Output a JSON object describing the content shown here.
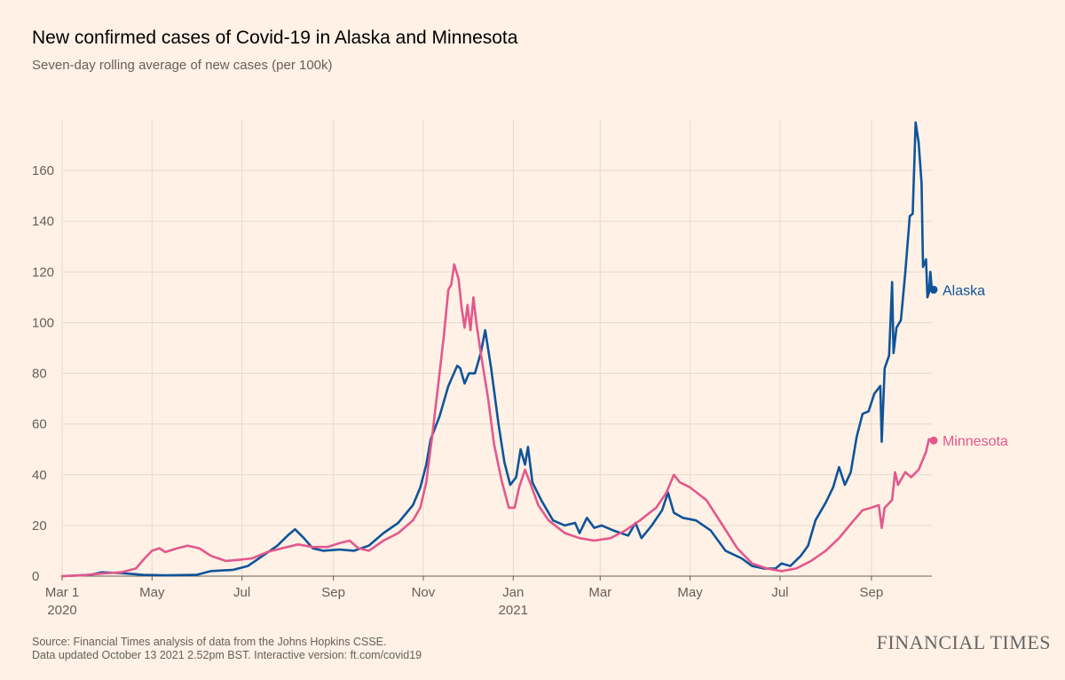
{
  "header": {
    "title": "New confirmed cases of Covid-19 in Alaska and Minnesota",
    "subtitle": "Seven-day rolling average of new cases (per 100k)"
  },
  "footer": {
    "source_line1": "Source: Financial Times analysis of data from the Johns Hopkins CSSE.",
    "source_line2": "Data updated October 13 2021 2.52pm BST. Interactive version: ft.com/covid19",
    "brand": "FINANCIAL TIMES"
  },
  "chart_data": {
    "type": "line",
    "title": "New confirmed cases of Covid-19 in Alaska and Minnesota",
    "subtitle": "Seven-day rolling average of new cases (per 100k)",
    "xlabel": "",
    "ylabel": "",
    "xlim": [
      "2020-03-01",
      "2021-10-12"
    ],
    "ylim": [
      0,
      180
    ],
    "grid": true,
    "x_ticks": [
      {
        "date": "2020-03-01",
        "label": "Mar 1",
        "sublabel": "2020"
      },
      {
        "date": "2020-05-01",
        "label": "May",
        "sublabel": ""
      },
      {
        "date": "2020-07-01",
        "label": "Jul",
        "sublabel": ""
      },
      {
        "date": "2020-09-01",
        "label": "Sep",
        "sublabel": ""
      },
      {
        "date": "2020-11-01",
        "label": "Nov",
        "sublabel": ""
      },
      {
        "date": "2021-01-01",
        "label": "Jan",
        "sublabel": "2021"
      },
      {
        "date": "2021-03-01",
        "label": "Mar",
        "sublabel": ""
      },
      {
        "date": "2021-05-01",
        "label": "May",
        "sublabel": ""
      },
      {
        "date": "2021-07-01",
        "label": "Jul",
        "sublabel": ""
      },
      {
        "date": "2021-09-01",
        "label": "Sep",
        "sublabel": ""
      }
    ],
    "y_ticks": [
      0,
      20,
      40,
      60,
      80,
      100,
      120,
      140,
      160
    ],
    "series": [
      {
        "name": "Alaska",
        "color": "#0f5499",
        "points": [
          [
            "2020-03-01",
            0
          ],
          [
            "2020-03-20",
            0.5
          ],
          [
            "2020-03-28",
            1.5
          ],
          [
            "2020-04-10",
            1.2
          ],
          [
            "2020-04-25",
            0.5
          ],
          [
            "2020-05-10",
            0.3
          ],
          [
            "2020-05-31",
            0.5
          ],
          [
            "2020-06-10",
            2
          ],
          [
            "2020-06-25",
            2.5
          ],
          [
            "2020-07-05",
            4
          ],
          [
            "2020-07-15",
            8
          ],
          [
            "2020-07-25",
            12
          ],
          [
            "2020-08-01",
            16
          ],
          [
            "2020-08-06",
            18.5
          ],
          [
            "2020-08-12",
            15
          ],
          [
            "2020-08-18",
            11
          ],
          [
            "2020-08-25",
            10
          ],
          [
            "2020-09-05",
            10.5
          ],
          [
            "2020-09-15",
            10
          ],
          [
            "2020-09-25",
            12
          ],
          [
            "2020-10-05",
            17
          ],
          [
            "2020-10-15",
            21
          ],
          [
            "2020-10-25",
            28
          ],
          [
            "2020-10-30",
            35
          ],
          [
            "2020-11-03",
            44
          ],
          [
            "2020-11-06",
            54
          ],
          [
            "2020-11-12",
            63
          ],
          [
            "2020-11-18",
            75
          ],
          [
            "2020-11-24",
            83
          ],
          [
            "2020-11-26",
            82
          ],
          [
            "2020-11-29",
            76
          ],
          [
            "2020-12-02",
            80
          ],
          [
            "2020-12-06",
            80
          ],
          [
            "2020-12-10",
            88
          ],
          [
            "2020-12-13",
            97
          ],
          [
            "2020-12-17",
            82
          ],
          [
            "2020-12-22",
            60
          ],
          [
            "2020-12-26",
            45
          ],
          [
            "2020-12-30",
            36
          ],
          [
            "2021-01-03",
            39
          ],
          [
            "2021-01-06",
            50
          ],
          [
            "2021-01-09",
            44
          ],
          [
            "2021-01-11",
            51
          ],
          [
            "2021-01-14",
            37
          ],
          [
            "2021-01-20",
            30
          ],
          [
            "2021-01-28",
            22
          ],
          [
            "2021-02-05",
            20
          ],
          [
            "2021-02-12",
            21
          ],
          [
            "2021-02-15",
            17
          ],
          [
            "2021-02-20",
            23
          ],
          [
            "2021-02-25",
            19
          ],
          [
            "2021-03-02",
            20
          ],
          [
            "2021-03-10",
            18
          ],
          [
            "2021-03-20",
            16
          ],
          [
            "2021-03-25",
            21
          ],
          [
            "2021-03-29",
            15
          ],
          [
            "2021-04-05",
            20
          ],
          [
            "2021-04-12",
            26
          ],
          [
            "2021-04-16",
            33
          ],
          [
            "2021-04-20",
            25
          ],
          [
            "2021-04-26",
            23
          ],
          [
            "2021-05-05",
            22
          ],
          [
            "2021-05-15",
            18
          ],
          [
            "2021-05-25",
            10
          ],
          [
            "2021-06-05",
            7
          ],
          [
            "2021-06-12",
            4
          ],
          [
            "2021-06-20",
            3
          ],
          [
            "2021-06-28",
            3
          ],
          [
            "2021-07-02",
            5
          ],
          [
            "2021-07-08",
            4
          ],
          [
            "2021-07-15",
            8
          ],
          [
            "2021-07-20",
            12
          ],
          [
            "2021-07-25",
            22
          ],
          [
            "2021-08-01",
            29
          ],
          [
            "2021-08-06",
            35
          ],
          [
            "2021-08-10",
            43
          ],
          [
            "2021-08-14",
            36
          ],
          [
            "2021-08-18",
            41
          ],
          [
            "2021-08-22",
            55
          ],
          [
            "2021-08-26",
            64
          ],
          [
            "2021-08-30",
            65
          ],
          [
            "2021-09-03",
            72
          ],
          [
            "2021-09-07",
            75
          ],
          [
            "2021-09-08",
            53
          ],
          [
            "2021-09-10",
            82
          ],
          [
            "2021-09-13",
            87
          ],
          [
            "2021-09-15",
            116
          ],
          [
            "2021-09-16",
            88
          ],
          [
            "2021-09-18",
            98
          ],
          [
            "2021-09-21",
            101
          ],
          [
            "2021-09-24",
            120
          ],
          [
            "2021-09-27",
            142
          ],
          [
            "2021-09-29",
            143
          ],
          [
            "2021-10-01",
            179
          ],
          [
            "2021-10-03",
            171
          ],
          [
            "2021-10-05",
            155
          ],
          [
            "2021-10-06",
            122
          ],
          [
            "2021-10-08",
            125
          ],
          [
            "2021-10-09",
            110
          ],
          [
            "2021-10-10",
            112
          ],
          [
            "2021-10-11",
            120
          ],
          [
            "2021-10-12",
            113
          ]
        ],
        "end_value": 113
      },
      {
        "name": "Minnesota",
        "color": "#e3588c",
        "points": [
          [
            "2020-03-01",
            0
          ],
          [
            "2020-03-15",
            0.3
          ],
          [
            "2020-03-28",
            1
          ],
          [
            "2020-04-10",
            1.5
          ],
          [
            "2020-04-20",
            3
          ],
          [
            "2020-04-26",
            7
          ],
          [
            "2020-05-01",
            10
          ],
          [
            "2020-05-06",
            11
          ],
          [
            "2020-05-10",
            9.5
          ],
          [
            "2020-05-18",
            11
          ],
          [
            "2020-05-25",
            12
          ],
          [
            "2020-06-02",
            11
          ],
          [
            "2020-06-10",
            8
          ],
          [
            "2020-06-20",
            6
          ],
          [
            "2020-06-30",
            6.5
          ],
          [
            "2020-07-08",
            7
          ],
          [
            "2020-07-18",
            9.5
          ],
          [
            "2020-07-28",
            11
          ],
          [
            "2020-08-08",
            12.5
          ],
          [
            "2020-08-18",
            11.5
          ],
          [
            "2020-08-28",
            11.5
          ],
          [
            "2020-09-05",
            13
          ],
          [
            "2020-09-12",
            14
          ],
          [
            "2020-09-18",
            11
          ],
          [
            "2020-09-25",
            10
          ],
          [
            "2020-10-05",
            14
          ],
          [
            "2020-10-15",
            17
          ],
          [
            "2020-10-25",
            22
          ],
          [
            "2020-10-30",
            27
          ],
          [
            "2020-11-03",
            37
          ],
          [
            "2020-11-07",
            55
          ],
          [
            "2020-11-11",
            75
          ],
          [
            "2020-11-15",
            95
          ],
          [
            "2020-11-18",
            113
          ],
          [
            "2020-11-20",
            115
          ],
          [
            "2020-11-22",
            123
          ],
          [
            "2020-11-25",
            117
          ],
          [
            "2020-11-27",
            106
          ],
          [
            "2020-11-29",
            98
          ],
          [
            "2020-12-01",
            107
          ],
          [
            "2020-12-03",
            97
          ],
          [
            "2020-12-05",
            110
          ],
          [
            "2020-12-07",
            100
          ],
          [
            "2020-12-10",
            88
          ],
          [
            "2020-12-15",
            70
          ],
          [
            "2020-12-19",
            52
          ],
          [
            "2020-12-24",
            38
          ],
          [
            "2020-12-29",
            27
          ],
          [
            "2021-01-02",
            27
          ],
          [
            "2021-01-05",
            35
          ],
          [
            "2021-01-09",
            42
          ],
          [
            "2021-01-13",
            36
          ],
          [
            "2021-01-18",
            28
          ],
          [
            "2021-01-25",
            22
          ],
          [
            "2021-02-05",
            17
          ],
          [
            "2021-02-15",
            15
          ],
          [
            "2021-02-25",
            14
          ],
          [
            "2021-03-08",
            15
          ],
          [
            "2021-03-18",
            18
          ],
          [
            "2021-03-28",
            22
          ],
          [
            "2021-04-08",
            27
          ],
          [
            "2021-04-15",
            33
          ],
          [
            "2021-04-20",
            40
          ],
          [
            "2021-04-24",
            37
          ],
          [
            "2021-05-01",
            35
          ],
          [
            "2021-05-12",
            30
          ],
          [
            "2021-05-22",
            21
          ],
          [
            "2021-06-02",
            11
          ],
          [
            "2021-06-12",
            5
          ],
          [
            "2021-06-22",
            3
          ],
          [
            "2021-07-02",
            2
          ],
          [
            "2021-07-12",
            3
          ],
          [
            "2021-07-22",
            6
          ],
          [
            "2021-08-01",
            10
          ],
          [
            "2021-08-10",
            15
          ],
          [
            "2021-08-20",
            22
          ],
          [
            "2021-08-26",
            26
          ],
          [
            "2021-09-01",
            27
          ],
          [
            "2021-09-06",
            28
          ],
          [
            "2021-09-08",
            19
          ],
          [
            "2021-09-10",
            27
          ],
          [
            "2021-09-15",
            30
          ],
          [
            "2021-09-17",
            41
          ],
          [
            "2021-09-19",
            36
          ],
          [
            "2021-09-24",
            41
          ],
          [
            "2021-09-28",
            39
          ],
          [
            "2021-10-03",
            42
          ],
          [
            "2021-10-08",
            49
          ],
          [
            "2021-10-10",
            54
          ],
          [
            "2021-10-12",
            53.5
          ]
        ],
        "end_value": 53.5
      }
    ]
  }
}
